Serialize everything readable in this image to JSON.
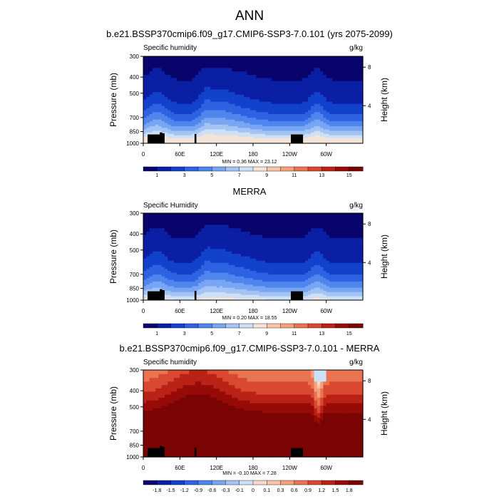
{
  "figure": {
    "title": "ANN"
  },
  "colors": {
    "levels_15": [
      "#08046b",
      "#0a1fa4",
      "#1242cc",
      "#2d63e2",
      "#4f86ed",
      "#78a6f2",
      "#a3c4f5",
      "#cde0f6",
      "#f4e4d8",
      "#f7c4a8",
      "#f4a07c",
      "#ea7352",
      "#d94830",
      "#bb2216",
      "#960b08",
      "#7a0403"
    ],
    "levels_diff": [
      "#08046b",
      "#0a1fa4",
      "#1242cc",
      "#2d63e2",
      "#4f86ed",
      "#78a6f2",
      "#a3c4f5",
      "#cde0f6",
      "#f9d9c9",
      "#f7c4a8",
      "#f4a07c",
      "#ea7352",
      "#d94830",
      "#bb2216",
      "#960b08",
      "#7a0403"
    ],
    "terrain": "#000000"
  },
  "chart_data": [
    {
      "type": "heatmap",
      "title": "b.e21.BSSP370cmip6.f09_g17.CMIP6-SSP3-7.0.101 (yrs 2075-2099)",
      "left_label": "Specific humidity",
      "right_label": "g/kg",
      "ylabel": "Pressure (mb)",
      "y2label": "Height (km)",
      "y_ticks": [
        "300",
        "400",
        "500",
        "700",
        "850",
        "1000"
      ],
      "y_tick_values": [
        300,
        400,
        500,
        700,
        850,
        1000
      ],
      "y2_ticks": [
        "8",
        "4"
      ],
      "y2_tick_values": [
        8,
        4
      ],
      "x_ticks": [
        "0",
        "60E",
        "120E",
        "180",
        "120W",
        "60W"
      ],
      "x_tick_values": [
        0,
        60,
        120,
        180,
        240,
        300
      ],
      "xlim": [
        0,
        360
      ],
      "ylim": [
        300,
        1000
      ],
      "stats": "MIN =   0.36  MAX =  23.12",
      "colorbar_labels": [
        "1",
        "3",
        "5",
        "7",
        "9",
        "11",
        "13",
        "15"
      ],
      "colorbar_values": [
        1,
        3,
        5,
        7,
        9,
        11,
        13,
        15
      ],
      "scale": "abs",
      "palette": "levels_15"
    },
    {
      "type": "heatmap",
      "title": "MERRA",
      "left_label": "Specific Humidity",
      "right_label": "g/kg",
      "ylabel": "Pressure (mb)",
      "y2label": "Height (km)",
      "y_ticks": [
        "300",
        "400",
        "500",
        "700",
        "850",
        "1000"
      ],
      "y_tick_values": [
        300,
        400,
        500,
        700,
        850,
        1000
      ],
      "y2_ticks": [
        "8",
        "4"
      ],
      "y2_tick_values": [
        8,
        4
      ],
      "x_ticks": [
        "0",
        "60E",
        "120E",
        "180",
        "120W",
        "60W"
      ],
      "x_tick_values": [
        0,
        60,
        120,
        180,
        240,
        300
      ],
      "xlim": [
        0,
        360
      ],
      "ylim": [
        300,
        1000
      ],
      "stats": "MIN =   0.20  MAX =  18.55",
      "colorbar_labels": [
        "1",
        "3",
        "5",
        "7",
        "9",
        "11",
        "13",
        "15"
      ],
      "colorbar_values": [
        1,
        3,
        5,
        7,
        9,
        11,
        13,
        15
      ],
      "scale": "obs",
      "palette": "levels_15"
    },
    {
      "type": "heatmap",
      "title": "b.e21.BSSP370cmip6.f09_g17.CMIP6-SSP3-7.0.101 - MERRA",
      "left_label": "Specific humidity",
      "right_label": "g/kg",
      "ylabel": "Pressure (mb)",
      "y2label": "Height (km)",
      "y_ticks": [
        "300",
        "400",
        "500",
        "700",
        "850",
        "1000"
      ],
      "y_tick_values": [
        300,
        400,
        500,
        700,
        850,
        1000
      ],
      "y2_ticks": [
        "8",
        "4"
      ],
      "y2_tick_values": [
        8,
        4
      ],
      "x_ticks": [
        "0",
        "60E",
        "120E",
        "180",
        "120W",
        "60W"
      ],
      "x_tick_values": [
        0,
        60,
        120,
        180,
        240,
        300
      ],
      "xlim": [
        0,
        360
      ],
      "ylim": [
        300,
        1000
      ],
      "stats": "MIN =  -0.10  MAX =   7.28",
      "colorbar_labels": [
        "-1.8",
        "-1.5",
        "-1.2",
        "-0.9",
        "-0.6",
        "-0.3",
        "-0.1",
        "0",
        "0.1",
        "0.3",
        "0.6",
        "0.9",
        "1.2",
        "1.5",
        "1.8"
      ],
      "colorbar_values": [
        -1.8,
        -1.5,
        -1.2,
        -0.9,
        -0.6,
        -0.3,
        -0.1,
        0,
        0.1,
        0.3,
        0.6,
        0.9,
        1.2,
        1.5,
        1.8
      ],
      "scale": "diff",
      "palette": "levels_diff"
    }
  ]
}
